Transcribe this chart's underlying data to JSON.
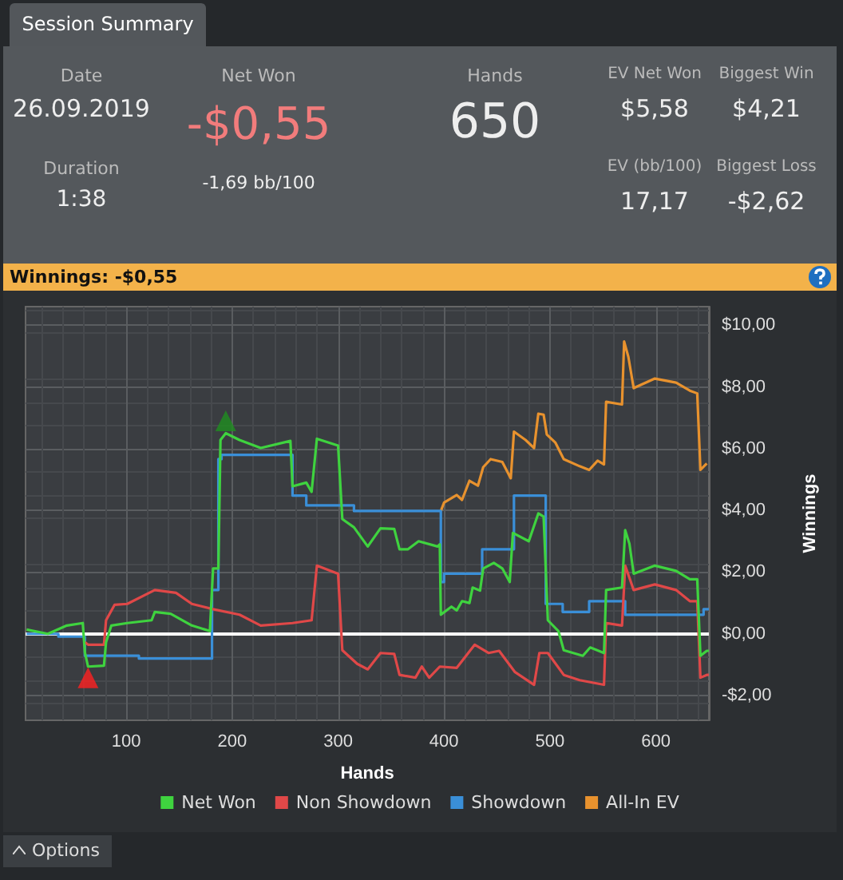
{
  "chart_data": [
    {
      "type": "other",
      "title": "Session Summary",
      "annotations": [
        "Date",
        "26.09.2019",
        "Duration",
        "1:38",
        "Net Won",
        "-$0,55",
        "-1,69 bb/100",
        "Hands",
        "650",
        "EV Net Won",
        "$5,58",
        "Biggest Win",
        "$4,21",
        "EV (bb/100)",
        "17,17",
        "Biggest Loss",
        "-$2,62"
      ]
    },
    {
      "type": "line",
      "title": "Winnings:  -$0,55",
      "xlabel": "Hands",
      "ylabel": "Winnings",
      "xlim": [
        5,
        650
      ],
      "xticks": [
        100,
        200,
        300,
        400,
        500,
        600
      ],
      "ylim": [
        -2.8,
        10.6
      ],
      "yticks": [
        {
          "value": -2,
          "label": "-$2,00"
        },
        {
          "value": 0,
          "label": "$0,00"
        },
        {
          "value": 2,
          "label": "$2,00"
        },
        {
          "value": 4,
          "label": "$4,00"
        },
        {
          "value": 6,
          "label": "$6,00"
        },
        {
          "value": 8,
          "label": "$8,00"
        },
        {
          "value": 10,
          "label": "$10,00"
        }
      ],
      "grid": true,
      "legend": "bottom",
      "marker": "none",
      "ref_lines": [
        {
          "axis": "y",
          "value": 0,
          "color": "#ffffff"
        }
      ],
      "annotations": [
        "Options"
      ],
      "series": [
        {
          "name": "Net Won",
          "color": "#3fd33f",
          "x": [
            6,
            26,
            44,
            59,
            61,
            64,
            79,
            81,
            86,
            101,
            124,
            127,
            142,
            162,
            179,
            182,
            187,
            189,
            194,
            207,
            227,
            255,
            257,
            270,
            275,
            280,
            300,
            304,
            315,
            328,
            340,
            353,
            358,
            366,
            376,
            394,
            396,
            397,
            407,
            412,
            417,
            424,
            427,
            434,
            437,
            447,
            455,
            462,
            465,
            480,
            489,
            494,
            498,
            508,
            513,
            531,
            538,
            551,
            553,
            568,
            571,
            575,
            579,
            599,
            619,
            632,
            639,
            642,
            648,
            650
          ],
          "values": [
            0.14,
            0,
            0.27,
            0.35,
            -0.6,
            -1.06,
            -1.03,
            -0.27,
            0.27,
            0.35,
            0.44,
            0.71,
            0.65,
            0.27,
            0.09,
            2.12,
            2.12,
            6.28,
            6.5,
            6.28,
            6.02,
            6.25,
            4.78,
            4.9,
            4.6,
            6.32,
            6.1,
            3.72,
            3.45,
            2.83,
            3.42,
            3.4,
            2.74,
            2.74,
            3.0,
            2.83,
            2.9,
            0.62,
            0.88,
            0.76,
            1.06,
            1.0,
            1.5,
            1.4,
            2.12,
            2.3,
            2.12,
            1.68,
            3.27,
            3.0,
            3.9,
            3.8,
            0.44,
            0.09,
            -0.53,
            -0.71,
            -0.44,
            -0.62,
            1.42,
            1.5,
            3.36,
            2.92,
            1.95,
            2.21,
            2.04,
            1.77,
            1.77,
            -0.71,
            -0.55,
            -0.55
          ]
        },
        {
          "name": "Non Showdown",
          "color": "#e04848",
          "x": [
            61,
            64,
            79,
            81,
            89,
            101,
            127,
            147,
            162,
            182,
            207,
            227,
            257,
            275,
            280,
            300,
            304,
            318,
            328,
            340,
            353,
            358,
            373,
            379,
            386,
            396,
            412,
            417,
            429,
            442,
            452,
            467,
            485,
            490,
            498,
            513,
            528,
            551,
            553,
            568,
            571,
            579,
            599,
            619,
            632,
            639,
            642,
            648,
            650
          ],
          "values": [
            -0.27,
            -0.35,
            -0.35,
            0.44,
            0.94,
            0.97,
            1.42,
            1.33,
            0.97,
            0.8,
            0.62,
            0.27,
            0.35,
            0.44,
            2.21,
            1.95,
            -0.53,
            -0.97,
            -1.15,
            -0.62,
            -0.65,
            -1.33,
            -1.42,
            -1.06,
            -1.42,
            -1.06,
            -1.1,
            -0.88,
            -0.35,
            -0.62,
            -0.55,
            -1.24,
            -1.65,
            -0.62,
            -0.62,
            -1.33,
            -1.5,
            -1.65,
            0.35,
            0.27,
            2.21,
            1.42,
            1.6,
            1.42,
            1.06,
            1.06,
            -1.42,
            -1.33,
            -1.33
          ]
        },
        {
          "name": "Showdown",
          "type": "step",
          "color": "#3a8fd8",
          "x": [
            6,
            36,
            61,
            112,
            181,
            187,
            190,
            257,
            270,
            315,
            397,
            400,
            436,
            466,
            496,
            512,
            537,
            571,
            645,
            650
          ],
          "values": [
            0,
            -0.09,
            -0.71,
            -0.8,
            1.42,
            5.66,
            5.8,
            4.48,
            4.16,
            3.98,
            1.68,
            1.95,
            2.74,
            4.48,
            0.97,
            0.71,
            1.06,
            0.62,
            0.8,
            0.8
          ]
        },
        {
          "name": "All-In EV",
          "color": "#e8922e",
          "x": [
            397,
            400,
            412,
            417,
            424,
            432,
            437,
            444,
            455,
            463,
            466,
            477,
            485,
            489,
            494,
            497,
            505,
            513,
            528,
            537,
            545,
            551,
            553,
            568,
            570,
            574,
            579,
            599,
            619,
            632,
            639,
            642,
            648
          ],
          "values": [
            3.98,
            4.25,
            4.5,
            4.34,
            4.96,
            4.8,
            5.4,
            5.66,
            5.57,
            5.04,
            6.55,
            6.28,
            6.02,
            7.13,
            7.1,
            6.46,
            6.2,
            5.66,
            5.43,
            5.31,
            5.61,
            5.49,
            7.52,
            7.43,
            9.47,
            8.97,
            7.96,
            8.27,
            8.14,
            7.88,
            7.79,
            5.31,
            5.52
          ]
        },
        {
          "type": "scatter",
          "marker": "triangle",
          "color": "#1f8f1f",
          "x": [
            194
          ],
          "values": [
            6.9
          ]
        },
        {
          "type": "scatter",
          "marker": "triangle",
          "color": "#ff2020",
          "x": [
            64
          ],
          "values": [
            -1.42
          ]
        }
      ]
    }
  ]
}
